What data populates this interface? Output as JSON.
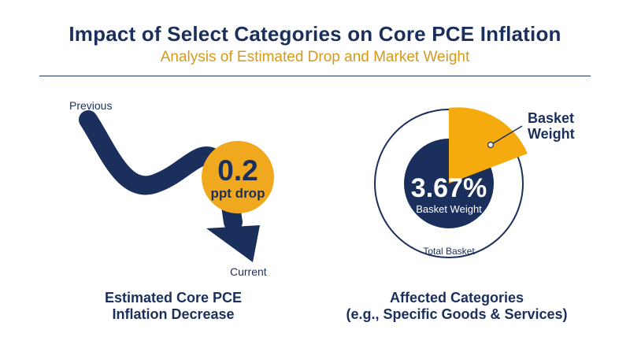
{
  "header": {
    "title": "Impact of Select Categories on Core PCE Inflation",
    "subtitle": "Analysis of Estimated Drop and Market Weight"
  },
  "left_panel": {
    "start_label": "Previous",
    "end_label": "Current",
    "badge_value": "0.2",
    "badge_unit": "ppt drop",
    "caption_line1": "Estimated Core PCE",
    "caption_line2": "Inflation Decrease"
  },
  "right_panel": {
    "center_value": "3.67%",
    "center_label": "Basket Weight",
    "outer_label": "Total Basket",
    "callout_line1": "Basket",
    "callout_line2": "Weight",
    "caption_line1": "Affected Categories",
    "caption_line2": "(e.g., Specific Goods & Services)"
  },
  "colors": {
    "navy": "#1b2f5c",
    "gold": "#f0a81e",
    "gold_text": "#d69a1a"
  }
}
